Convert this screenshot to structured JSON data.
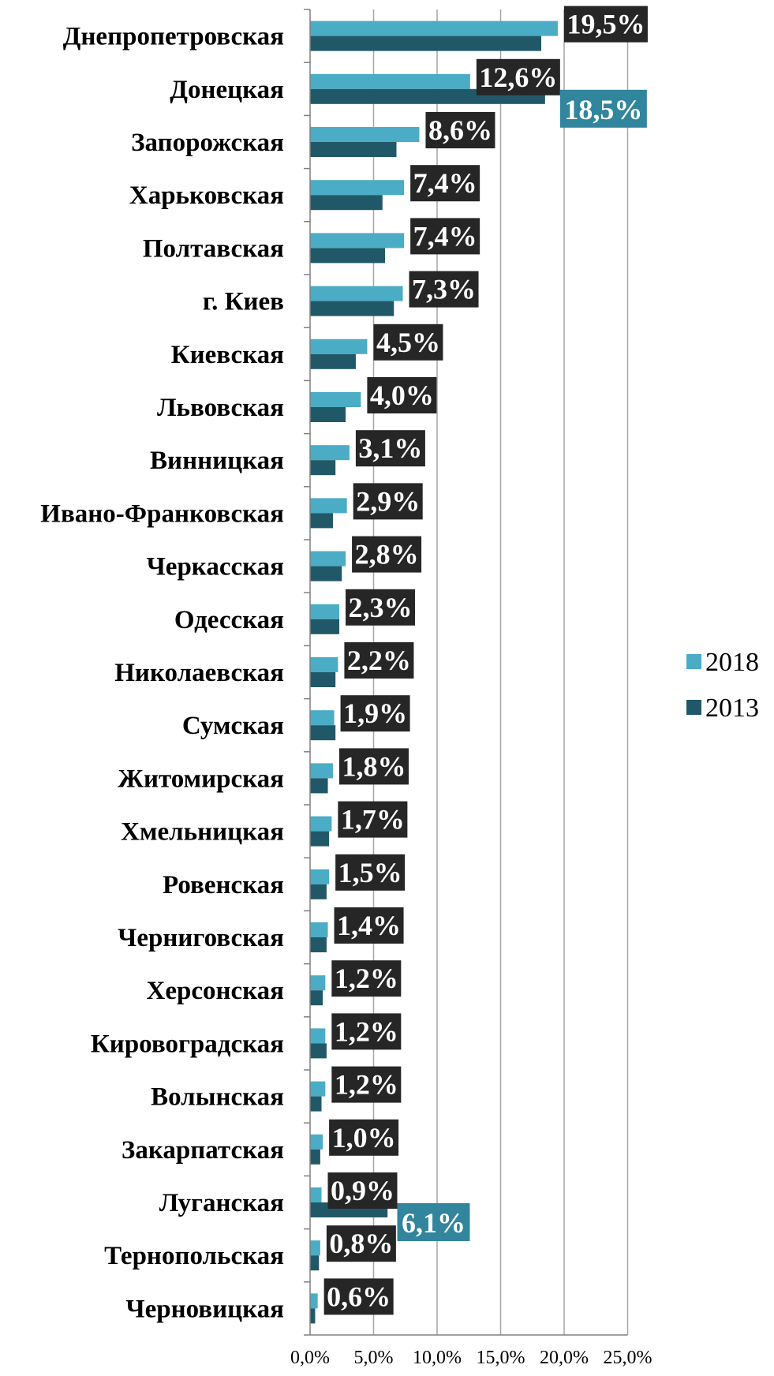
{
  "chart_data": {
    "type": "bar",
    "orientation": "horizontal",
    "categories": [
      "Днепропетровская",
      "Донецкая",
      "Запорожская",
      "Харьковская",
      "Полтавская",
      "г. Киев",
      "Киевская",
      "Львовская",
      "Винницкая",
      "Ивано-Франковская",
      "Черкасская",
      "Одесская",
      "Николаевская",
      "Сумская",
      "Житомирская",
      "Хмельницкая",
      "Ровенская",
      "Черниговская",
      "Херсонская",
      "Кировоградская",
      "Волынская",
      "Закарпатская",
      "Луганская",
      "Тернопольская",
      "Черновицкая"
    ],
    "series": [
      {
        "name": "2018",
        "color": "#4bacc6",
        "values": [
          19.5,
          12.6,
          8.6,
          7.4,
          7.4,
          7.3,
          4.5,
          4.0,
          3.1,
          2.9,
          2.8,
          2.3,
          2.2,
          1.9,
          1.8,
          1.7,
          1.5,
          1.4,
          1.2,
          1.2,
          1.2,
          1.0,
          0.9,
          0.8,
          0.6
        ],
        "labels": [
          "19,5%",
          "12,6%",
          "8,6%",
          "7,4%",
          "7,4%",
          "7,3%",
          "4,5%",
          "4,0%",
          "3,1%",
          "2,9%",
          "2,8%",
          "2,3%",
          "2,2%",
          "1,9%",
          "1,8%",
          "1,7%",
          "1,5%",
          "1,4%",
          "1,2%",
          "1,2%",
          "1,2%",
          "1,0%",
          "0,9%",
          "0,8%",
          "0,6%"
        ]
      },
      {
        "name": "2013",
        "color": "#215868",
        "values": [
          18.2,
          18.5,
          6.8,
          5.7,
          5.9,
          6.6,
          3.6,
          2.8,
          2.0,
          1.8,
          2.5,
          2.3,
          2.0,
          2.0,
          1.4,
          1.5,
          1.3,
          1.3,
          1.0,
          1.3,
          0.9,
          0.8,
          6.1,
          0.7,
          0.4
        ],
        "callouts": [
          {
            "index": 1,
            "label": "18,5%"
          },
          {
            "index": 22,
            "label": "6,1%"
          }
        ]
      }
    ],
    "xaxis": {
      "min": 0,
      "max": 25,
      "step": 5,
      "tick_labels": [
        "0,0%",
        "5,0%",
        "10,0%",
        "15,0%",
        "20,0%",
        "25,0%"
      ]
    },
    "grid": true,
    "legend": {
      "position": "right",
      "items": [
        "2018",
        "2013"
      ]
    },
    "label_box_color": "#262626",
    "callout_box_color": "#31859c"
  }
}
